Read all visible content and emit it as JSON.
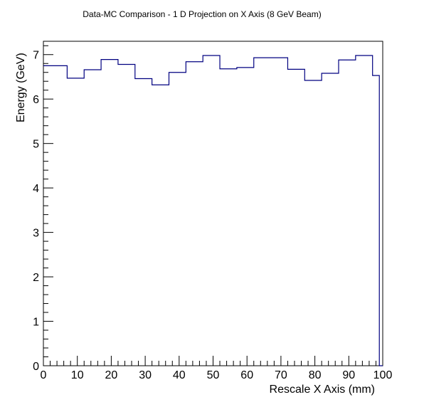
{
  "chart_data": {
    "type": "histogram",
    "title": "Data-MC Comparison - 1 D Projection on X Axis (8 GeV Beam)",
    "xlabel": "Rescale X Axis (mm)",
    "ylabel": "Energy (GeV)",
    "xlim": [
      0,
      100
    ],
    "ylim": [
      0,
      7.3
    ],
    "x_ticks": [
      0,
      10,
      20,
      30,
      40,
      50,
      60,
      70,
      80,
      90,
      100
    ],
    "y_ticks": [
      0,
      1,
      2,
      3,
      4,
      5,
      6,
      7
    ],
    "bin_edges": [
      0,
      7,
      12,
      17,
      22,
      27,
      32,
      37,
      42,
      47,
      52,
      57,
      62,
      67,
      72,
      77,
      82,
      87,
      92,
      97,
      99,
      100
    ],
    "values": [
      6.75,
      6.47,
      6.66,
      6.89,
      6.78,
      6.46,
      6.32,
      6.6,
      6.84,
      6.98,
      6.68,
      6.71,
      6.93,
      6.93,
      6.67,
      6.42,
      6.58,
      6.88,
      6.98,
      6.53,
      0
    ],
    "line_color": "#000080"
  }
}
